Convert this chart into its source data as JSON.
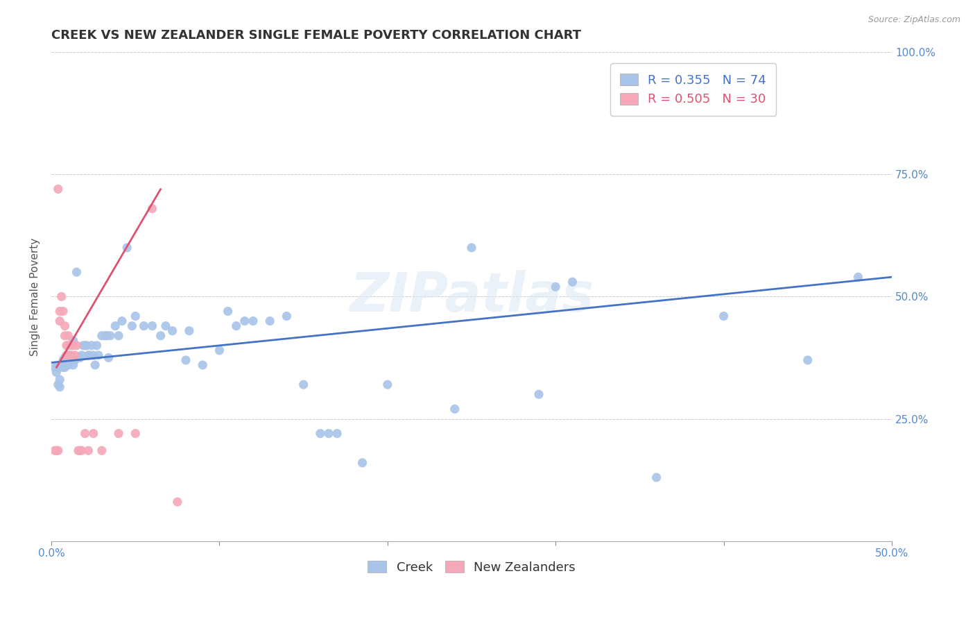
{
  "title": "CREEK VS NEW ZEALANDER SINGLE FEMALE POVERTY CORRELATION CHART",
  "source": "Source: ZipAtlas.com",
  "ylabel": "Single Female Poverty",
  "watermark": "ZIPatlas",
  "xlim": [
    0.0,
    0.5
  ],
  "ylim": [
    0.0,
    1.0
  ],
  "xticks": [
    0.0,
    0.1,
    0.2,
    0.3,
    0.4,
    0.5
  ],
  "xticklabels": [
    "0.0%",
    "",
    "",
    "",
    "",
    "50.0%"
  ],
  "yticks_right": [
    0.0,
    0.25,
    0.5,
    0.75,
    1.0
  ],
  "yticklabels_right": [
    "",
    "25.0%",
    "50.0%",
    "75.0%",
    "100.0%"
  ],
  "creek_R": 0.355,
  "creek_N": 74,
  "nz_R": 0.505,
  "nz_N": 30,
  "creek_color": "#a8c4e8",
  "nz_color": "#f4a8b8",
  "creek_line_color": "#4472c4",
  "nz_line_color": "#e05070",
  "creek_scatter": [
    [
      0.002,
      0.355
    ],
    [
      0.003,
      0.345
    ],
    [
      0.004,
      0.32
    ],
    [
      0.004,
      0.355
    ],
    [
      0.005,
      0.315
    ],
    [
      0.005,
      0.33
    ],
    [
      0.006,
      0.36
    ],
    [
      0.007,
      0.355
    ],
    [
      0.007,
      0.37
    ],
    [
      0.008,
      0.355
    ],
    [
      0.008,
      0.375
    ],
    [
      0.009,
      0.38
    ],
    [
      0.01,
      0.38
    ],
    [
      0.01,
      0.36
    ],
    [
      0.011,
      0.38
    ],
    [
      0.012,
      0.4
    ],
    [
      0.013,
      0.41
    ],
    [
      0.013,
      0.36
    ],
    [
      0.014,
      0.37
    ],
    [
      0.015,
      0.55
    ],
    [
      0.016,
      0.375
    ],
    [
      0.017,
      0.375
    ],
    [
      0.018,
      0.38
    ],
    [
      0.019,
      0.4
    ],
    [
      0.02,
      0.4
    ],
    [
      0.021,
      0.4
    ],
    [
      0.022,
      0.38
    ],
    [
      0.023,
      0.38
    ],
    [
      0.024,
      0.4
    ],
    [
      0.025,
      0.38
    ],
    [
      0.026,
      0.36
    ],
    [
      0.027,
      0.4
    ],
    [
      0.028,
      0.38
    ],
    [
      0.03,
      0.42
    ],
    [
      0.032,
      0.42
    ],
    [
      0.033,
      0.42
    ],
    [
      0.034,
      0.375
    ],
    [
      0.035,
      0.42
    ],
    [
      0.038,
      0.44
    ],
    [
      0.04,
      0.42
    ],
    [
      0.042,
      0.45
    ],
    [
      0.045,
      0.6
    ],
    [
      0.048,
      0.44
    ],
    [
      0.05,
      0.46
    ],
    [
      0.055,
      0.44
    ],
    [
      0.06,
      0.44
    ],
    [
      0.065,
      0.42
    ],
    [
      0.068,
      0.44
    ],
    [
      0.072,
      0.43
    ],
    [
      0.08,
      0.37
    ],
    [
      0.082,
      0.43
    ],
    [
      0.09,
      0.36
    ],
    [
      0.1,
      0.39
    ],
    [
      0.105,
      0.47
    ],
    [
      0.11,
      0.44
    ],
    [
      0.115,
      0.45
    ],
    [
      0.12,
      0.45
    ],
    [
      0.13,
      0.45
    ],
    [
      0.14,
      0.46
    ],
    [
      0.15,
      0.32
    ],
    [
      0.16,
      0.22
    ],
    [
      0.165,
      0.22
    ],
    [
      0.17,
      0.22
    ],
    [
      0.185,
      0.16
    ],
    [
      0.2,
      0.32
    ],
    [
      0.24,
      0.27
    ],
    [
      0.25,
      0.6
    ],
    [
      0.29,
      0.3
    ],
    [
      0.3,
      0.52
    ],
    [
      0.31,
      0.53
    ],
    [
      0.36,
      0.13
    ],
    [
      0.4,
      0.46
    ],
    [
      0.45,
      0.37
    ],
    [
      0.48,
      0.54
    ]
  ],
  "nz_scatter": [
    [
      0.002,
      0.185
    ],
    [
      0.003,
      0.185
    ],
    [
      0.004,
      0.185
    ],
    [
      0.004,
      0.72
    ],
    [
      0.005,
      0.45
    ],
    [
      0.005,
      0.47
    ],
    [
      0.006,
      0.5
    ],
    [
      0.007,
      0.47
    ],
    [
      0.008,
      0.42
    ],
    [
      0.008,
      0.44
    ],
    [
      0.009,
      0.38
    ],
    [
      0.009,
      0.4
    ],
    [
      0.01,
      0.4
    ],
    [
      0.01,
      0.42
    ],
    [
      0.011,
      0.38
    ],
    [
      0.012,
      0.38
    ],
    [
      0.013,
      0.4
    ],
    [
      0.014,
      0.38
    ],
    [
      0.015,
      0.4
    ],
    [
      0.016,
      0.185
    ],
    [
      0.017,
      0.185
    ],
    [
      0.018,
      0.185
    ],
    [
      0.02,
      0.22
    ],
    [
      0.022,
      0.185
    ],
    [
      0.025,
      0.22
    ],
    [
      0.03,
      0.185
    ],
    [
      0.04,
      0.22
    ],
    [
      0.05,
      0.22
    ],
    [
      0.06,
      0.68
    ],
    [
      0.075,
      0.08
    ]
  ],
  "creek_trendline_x": [
    0.0,
    0.5
  ],
  "creek_trendline_y": [
    0.365,
    0.54
  ],
  "nz_trendline_x": [
    0.003,
    0.065
  ],
  "nz_trendline_y": [
    0.355,
    0.72
  ],
  "background_color": "#ffffff",
  "grid_color": "#cccccc",
  "title_fontsize": 13,
  "label_fontsize": 11,
  "tick_fontsize": 11,
  "legend_fontsize": 13,
  "source_fontsize": 9
}
